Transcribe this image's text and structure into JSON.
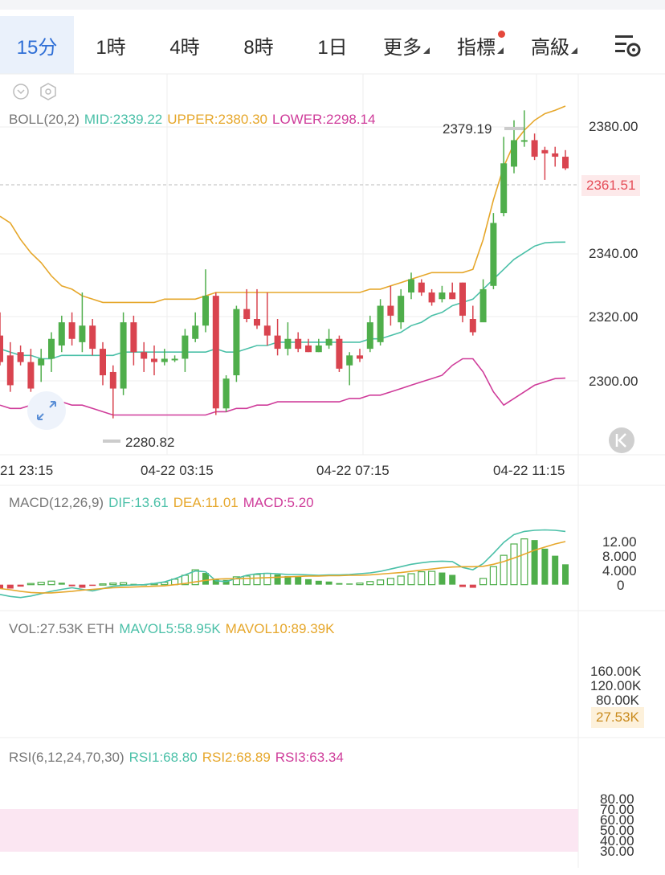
{
  "timeframes": [
    "15分",
    "1時",
    "4時",
    "8時",
    "1日"
  ],
  "active_timeframe": "15分",
  "menu": {
    "more": "更多",
    "indicators": "指標",
    "advanced": "高級"
  },
  "colors": {
    "up": "#4fae4b",
    "down": "#d9444f",
    "mid": "#4bc0a8",
    "upper": "#e6a72b",
    "lower": "#cf3c9a",
    "accent": "#2f6fd6"
  },
  "icons": {
    "settings": "settings-sliders-icon",
    "collapse": "chevron-down-circle-icon",
    "gear": "gear-hex-icon",
    "expand": "expand-arrows-icon",
    "back": "rewind-to-latest-icon"
  },
  "boll": {
    "title": "BOLL(20,2)",
    "mid": "MID:2339.22",
    "upper": "UPPER:2380.30",
    "lower": "LOWER:2298.14"
  },
  "price": {
    "current": "2361.51",
    "high": "2379.19",
    "low": "2280.82",
    "yticks": [
      "2380.00",
      "2340.00",
      "2320.00",
      "2300.00"
    ]
  },
  "time_labels": [
    "21 23:15",
    "04-22 03:15",
    "04-22 07:15",
    "04-22 11:15"
  ],
  "macd": {
    "title": "MACD(12,26,9)",
    "dif": "DIF:13.61",
    "dea": "DEA:11.01",
    "macd": "MACD:5.20",
    "yticks": [
      "12.00",
      "8.000",
      "4.000",
      "0"
    ]
  },
  "vol": {
    "title": "VOL:27.53K ETH",
    "mavol5": "MAVOL5:58.95K",
    "mavol10": "MAVOL10:89.39K",
    "current": "27.53K",
    "yticks": [
      "160.00K",
      "120.00K",
      "80.00K"
    ]
  },
  "rsi": {
    "title": "RSI(6,12,24,70,30)",
    "rsi1": "RSI1:68.80",
    "rsi2": "RSI2:68.89",
    "rsi3": "RSI3:63.34",
    "yticks": [
      "80.00",
      "70.00",
      "60.00",
      "50.00",
      "40.00",
      "30.00"
    ]
  },
  "chart_data": {
    "type": "candlestick",
    "price_ylim": [
      2275,
      2390
    ],
    "candles_ohlc": [
      [
        2311,
        2303,
        2318,
        2302
      ],
      [
        2305,
        2296,
        2309,
        2294
      ],
      [
        2306,
        2303,
        2308,
        2302
      ],
      [
        2303,
        2295,
        2307,
        2294
      ],
      [
        2302,
        2304,
        2307,
        2297
      ],
      [
        2304,
        2310,
        2312,
        2300
      ],
      [
        2308,
        2315,
        2317,
        2306
      ],
      [
        2315,
        2310,
        2318,
        2308
      ],
      [
        2309,
        2314,
        2324,
        2306
      ],
      [
        2314,
        2307,
        2316,
        2305
      ],
      [
        2307,
        2299,
        2309,
        2296
      ],
      [
        2300,
        2295,
        2302,
        2286
      ],
      [
        2295,
        2315,
        2318,
        2293
      ],
      [
        2315,
        2306,
        2317,
        2302
      ],
      [
        2306,
        2304,
        2309,
        2300
      ],
      [
        2304,
        2303,
        2308,
        2299
      ],
      [
        2303,
        2304,
        2307,
        2302
      ],
      [
        2304,
        2304,
        2305,
        2303
      ],
      [
        2304,
        2311,
        2313,
        2300
      ],
      [
        2310,
        2314,
        2318,
        2309
      ],
      [
        2314,
        2323,
        2331,
        2312
      ],
      [
        2323,
        2289,
        2324,
        2287
      ],
      [
        2289,
        2298,
        2299,
        2288
      ],
      [
        2299,
        2319,
        2320,
        2297
      ],
      [
        2319,
        2316,
        2325,
        2315
      ],
      [
        2316,
        2314,
        2325,
        2313
      ],
      [
        2314,
        2311,
        2324,
        2308
      ],
      [
        2311,
        2307,
        2316,
        2305
      ],
      [
        2307,
        2310,
        2315,
        2305
      ],
      [
        2310,
        2307,
        2312,
        2306
      ],
      [
        2308,
        2306,
        2310,
        2306
      ],
      [
        2306,
        2308,
        2310,
        2306
      ],
      [
        2308,
        2310,
        2313,
        2307
      ],
      [
        2310,
        2301,
        2311,
        2300
      ],
      [
        2302,
        2305,
        2306,
        2296
      ],
      [
        2305,
        2304,
        2307,
        2303
      ],
      [
        2307,
        2315,
        2317,
        2306
      ],
      [
        2309,
        2320,
        2322,
        2308
      ],
      [
        2320,
        2317,
        2326,
        2314
      ],
      [
        2315,
        2323,
        2325,
        2313
      ],
      [
        2324,
        2328,
        2330,
        2322
      ],
      [
        2327,
        2324,
        2328,
        2323
      ],
      [
        2324,
        2321,
        2325,
        2320
      ],
      [
        2322,
        2324,
        2326,
        2321
      ],
      [
        2324,
        2322,
        2327,
        2322
      ],
      [
        2327,
        2317,
        2327,
        2315
      ],
      [
        2316,
        2312,
        2320,
        2311
      ],
      [
        2315,
        2325,
        2328,
        2316
      ],
      [
        2326,
        2345,
        2348,
        2325
      ],
      [
        2348,
        2363,
        2371,
        2347
      ],
      [
        2362,
        2370,
        2376,
        2360
      ],
      [
        2370,
        2370,
        2379,
        2368
      ],
      [
        2370,
        2365,
        2372,
        2364
      ],
      [
        2367,
        2366,
        2368,
        2358
      ],
      [
        2366,
        2365,
        2368,
        2362
      ],
      [
        2365,
        2361.5,
        2367,
        2361
      ]
    ],
    "boll_mid": [
      2307,
      2306,
      2305,
      2305,
      2304,
      2304,
      2305,
      2305,
      2305,
      2305,
      2305,
      2305,
      2306,
      2306,
      2306,
      2306,
      2306,
      2306,
      2306,
      2306,
      2306,
      2307,
      2306,
      2306,
      2307,
      2308,
      2308,
      2309,
      2309,
      2309,
      2309,
      2309,
      2309,
      2309,
      2309,
      2309,
      2310,
      2310,
      2311,
      2312,
      2314,
      2315,
      2317,
      2318,
      2320,
      2321,
      2322,
      2325,
      2328,
      2331,
      2334,
      2336,
      2338,
      2339,
      2339.2,
      2339.22
    ],
    "boll_upper": [
      2347,
      2345,
      2340,
      2336,
      2333,
      2329,
      2326,
      2325,
      2323,
      2322,
      2321,
      2321,
      2321,
      2321,
      2321,
      2321,
      2322,
      2322,
      2322,
      2322,
      2323,
      2324,
      2324,
      2324,
      2324,
      2324,
      2324,
      2324,
      2324,
      2324,
      2324,
      2324,
      2324,
      2324,
      2324,
      2324,
      2325,
      2325,
      2326,
      2327,
      2328,
      2329,
      2330,
      2330,
      2330,
      2330,
      2331,
      2340,
      2352,
      2362,
      2369,
      2373,
      2376,
      2378,
      2379,
      2380.3
    ],
    "boll_lower": [
      2290,
      2289,
      2289,
      2290,
      2291,
      2291,
      2291,
      2290,
      2290,
      2289,
      2288,
      2287,
      2287,
      2287,
      2287,
      2287,
      2287,
      2287,
      2287,
      2287,
      2287,
      2288,
      2288,
      2289,
      2289,
      2290,
      2290,
      2291,
      2291,
      2291,
      2291,
      2291,
      2291,
      2291,
      2292,
      2292,
      2293,
      2293,
      2294,
      2295,
      2296,
      2297,
      2298,
      2299,
      2302,
      2304,
      2304,
      2300,
      2294,
      2290,
      2292,
      2294,
      2296,
      2297,
      2298,
      2298.14
    ],
    "macd_ylim": [
      -5,
      18
    ],
    "macd_hist": [
      -1,
      -1,
      -0.5,
      0.3,
      0.6,
      0.9,
      0.5,
      -0.4,
      -0.8,
      -0.3,
      0.2,
      0.4,
      0.5,
      0.2,
      0.1,
      0.3,
      0.6,
      1.4,
      2.4,
      3.8,
      3,
      1.3,
      1.2,
      2,
      2.2,
      2.6,
      2.9,
      2.6,
      2.2,
      2.1,
      1.4,
      1,
      0.8,
      0.4,
      0.3,
      0.4,
      0.8,
      1.2,
      1.6,
      2.2,
      2.8,
      3.3,
      3.4,
      3.1,
      2.5,
      -0.6,
      -0.8,
      1.6,
      4.6,
      7.5,
      10.4,
      11.7,
      11.4,
      9.2,
      7.4,
      5.2
    ],
    "macd_dif": [
      -2.5,
      -3,
      -3.3,
      -2.9,
      -2.3,
      -1.7,
      -1.2,
      -0.8,
      -1.2,
      -1.6,
      -1,
      -0.4,
      -0.2,
      -0.1,
      0,
      0.3,
      0.7,
      1.5,
      2.5,
      3.5,
      3.3,
      1,
      0.8,
      1.6,
      2.4,
      2.8,
      2.9,
      2.8,
      2.6,
      2.6,
      2.5,
      2.4,
      2.5,
      2.5,
      2.6,
      2.8,
      3,
      3.4,
      4,
      4.6,
      5.2,
      5.6,
      5.9,
      6,
      5.9,
      4.4,
      3.8,
      5.4,
      8,
      10.8,
      12.8,
      13.6,
      13.9,
      14,
      13.9,
      13.61
    ],
    "macd_dea": [
      -1,
      -1.3,
      -1.7,
      -2,
      -2.1,
      -2.1,
      -1.9,
      -1.7,
      -1.4,
      -1.2,
      -1,
      -0.8,
      -0.7,
      -0.6,
      -0.5,
      -0.4,
      -0.3,
      0,
      0.3,
      0.7,
      1.1,
      1.4,
      1.5,
      1.5,
      1.6,
      1.7,
      1.8,
      1.9,
      2,
      2.1,
      2.2,
      2.2,
      2.3,
      2.3,
      2.4,
      2.4,
      2.5,
      2.7,
      2.9,
      3.1,
      3.4,
      3.7,
      4,
      4.3,
      4.5,
      4.6,
      4.6,
      4.7,
      5.2,
      5.9,
      6.8,
      7.8,
      8.8,
      9.6,
      10.4,
      11.01
    ]
  }
}
